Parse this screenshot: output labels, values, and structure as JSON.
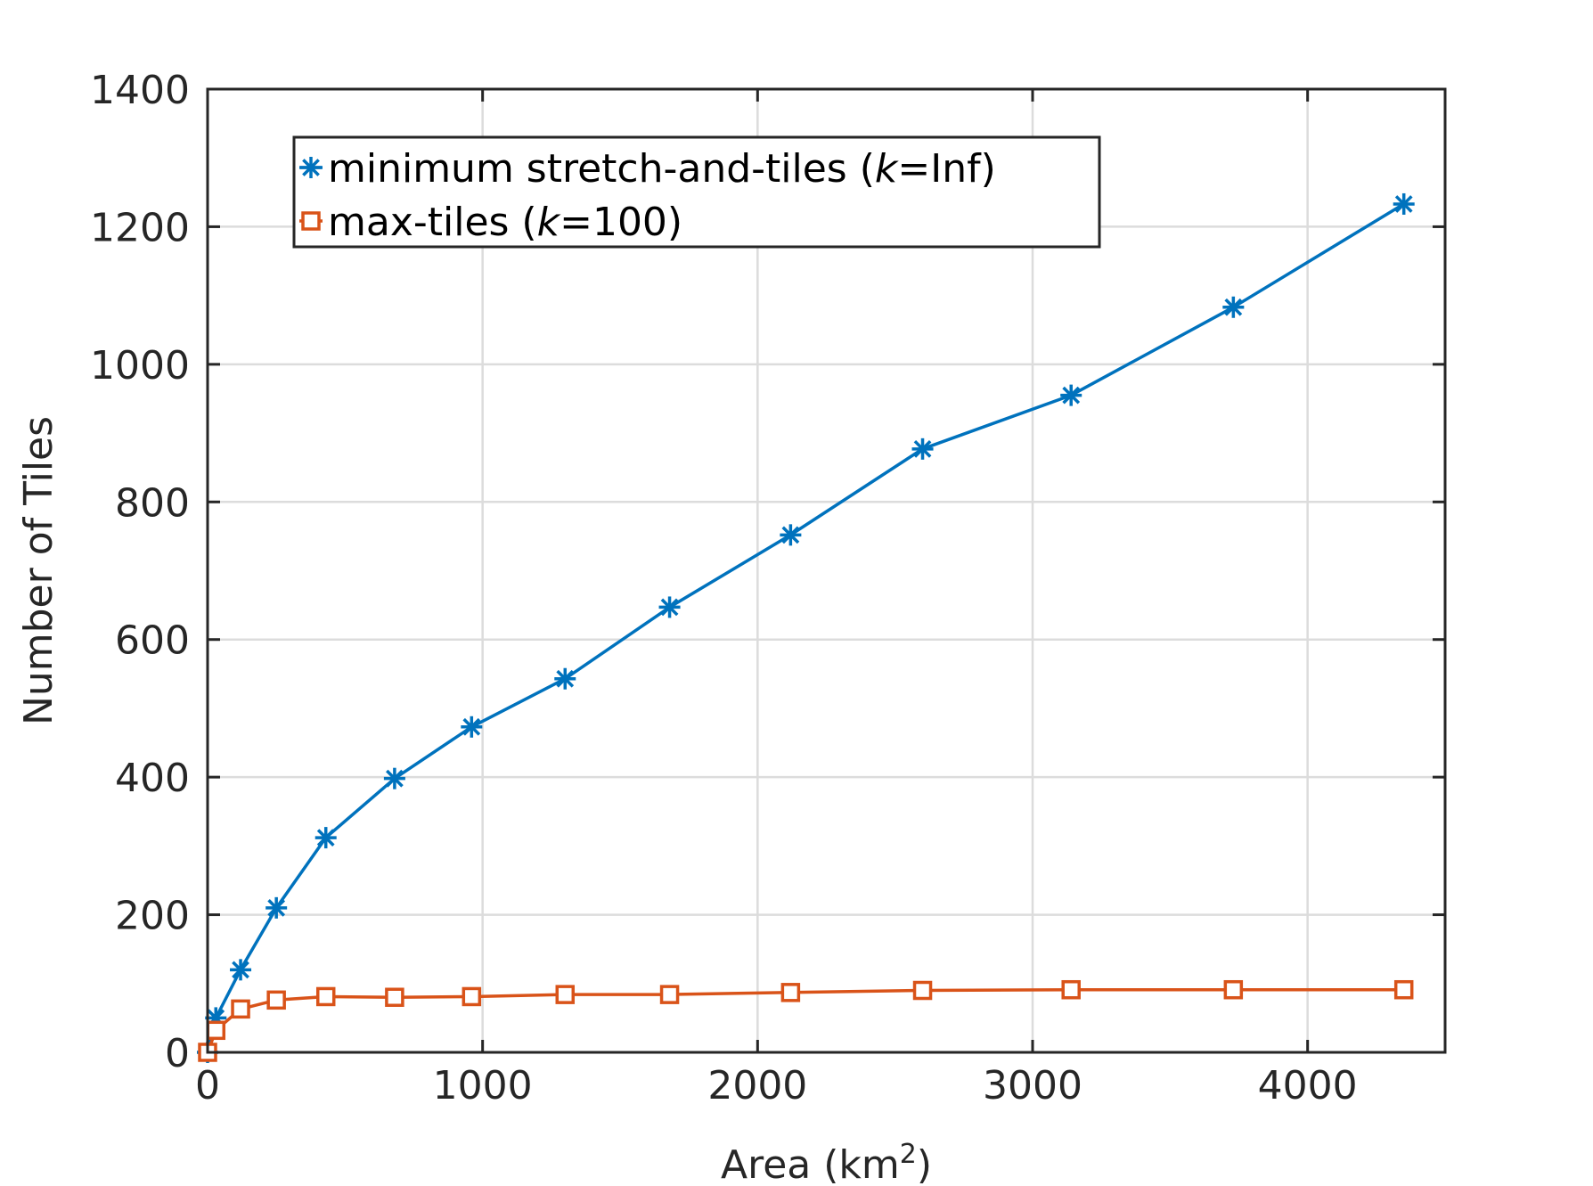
{
  "chart_data": {
    "type": "line",
    "title": "",
    "xlabel": "Area (km",
    "xlabel_superscript": "2",
    "xlabel_suffix": ")",
    "ylabel": "Number of Tiles",
    "xlim": [
      0,
      4500
    ],
    "ylim": [
      0,
      1400
    ],
    "x_ticks": [
      0,
      1000,
      2000,
      3000,
      4000
    ],
    "y_ticks": [
      0,
      200,
      400,
      600,
      800,
      1000,
      1200,
      1400
    ],
    "x_tick_labels": [
      "0",
      "1000",
      "2000",
      "3000",
      "4000"
    ],
    "y_tick_labels": [
      "0",
      "200",
      "400",
      "600",
      "800",
      "1000",
      "1200",
      "1400"
    ],
    "grid": true,
    "legend_position": "top-left",
    "series": [
      {
        "name": "minimum stretch-and-tiles (k=Inf)",
        "legend_prefix": "minimum stretch-and-tiles (",
        "legend_k": "k",
        "legend_suffix": "=Inf)",
        "color": "#0072BD",
        "marker": "asterisk",
        "x": [
          0,
          30,
          120,
          250,
          430,
          680,
          960,
          1300,
          1680,
          2120,
          2600,
          3140,
          3730,
          4350
        ],
        "y": [
          0,
          50,
          120,
          210,
          312,
          398,
          473,
          543,
          647,
          752,
          877,
          955,
          1083,
          1233
        ]
      },
      {
        "name": "max-tiles (k=100)",
        "legend_prefix": "max-tiles (",
        "legend_k": "k",
        "legend_suffix": "=100)",
        "color": "#D95319",
        "marker": "square",
        "x": [
          0,
          30,
          120,
          250,
          430,
          680,
          960,
          1300,
          1680,
          2120,
          2600,
          3140,
          3730,
          4350
        ],
        "y": [
          0,
          32,
          63,
          76,
          81,
          80,
          81,
          84,
          84,
          87,
          90,
          91,
          91,
          91
        ]
      }
    ]
  }
}
